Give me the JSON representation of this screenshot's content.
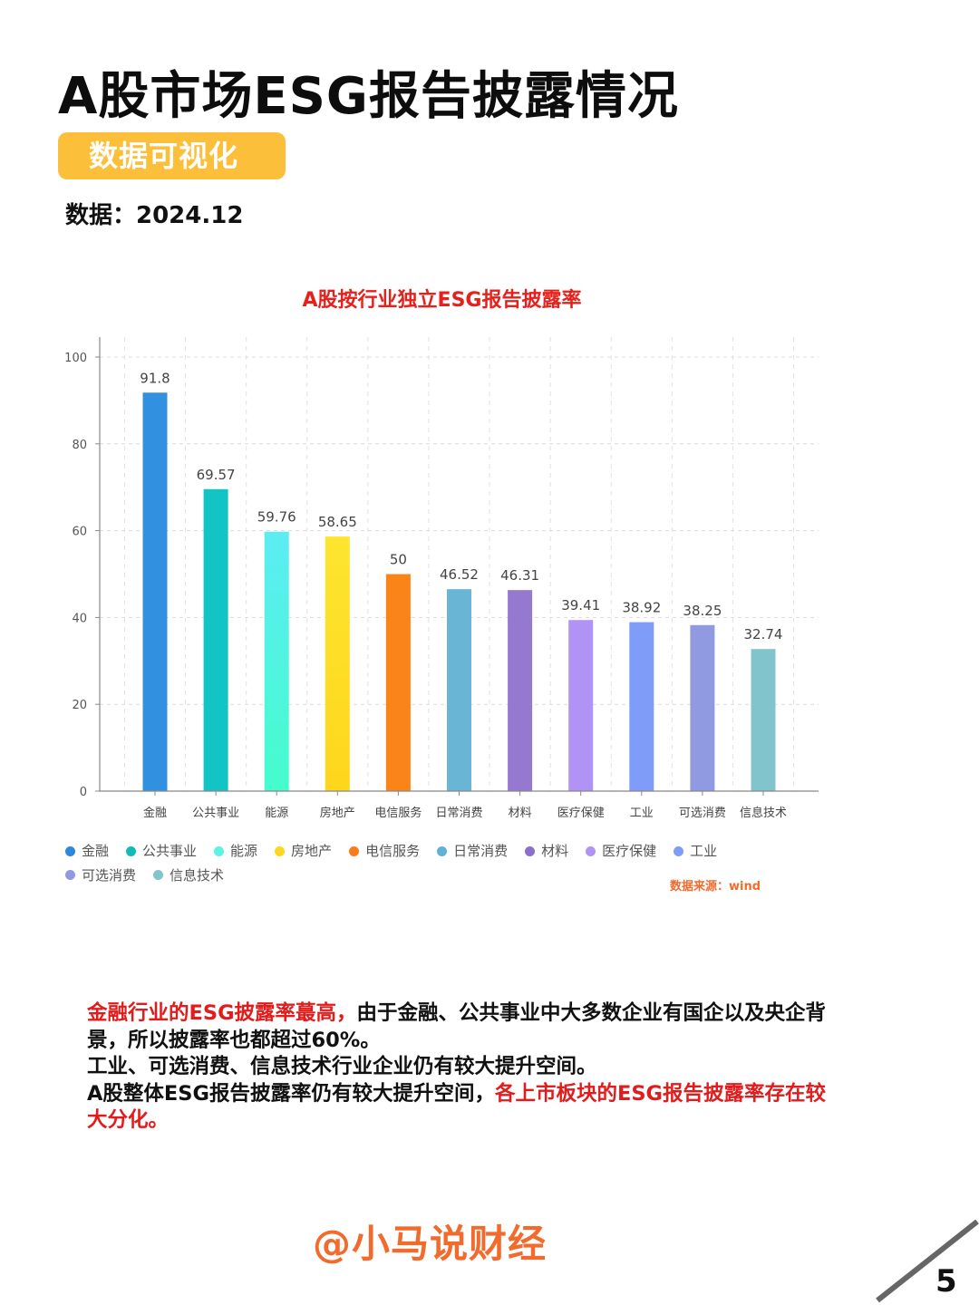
{
  "header": {
    "title": "A股市场ESG报告披露情况",
    "tag": "数据可视化",
    "date_label": "数据：2024.12"
  },
  "chart_data": {
    "type": "bar",
    "title": "A股按行业独立ESG报告披露率",
    "xlabel": "",
    "ylabel": "",
    "ylim": [
      0,
      100
    ],
    "yticks": [
      0,
      20,
      40,
      60,
      80,
      100
    ],
    "grid": true,
    "legend_position": "bottom",
    "categories": [
      "金融",
      "公共事业",
      "能源",
      "房地产",
      "电信服务",
      "日常消费",
      "材料",
      "医疗保健",
      "工业",
      "可选消费",
      "信息技术"
    ],
    "values": [
      91.8,
      69.57,
      59.76,
      58.65,
      50,
      46.52,
      46.31,
      39.41,
      38.92,
      38.25,
      32.74
    ],
    "value_labels": [
      "91.8",
      "69.57",
      "59.76",
      "58.65",
      "50",
      "46.52",
      "46.31",
      "39.41",
      "38.92",
      "38.25",
      "32.74"
    ],
    "colors": [
      "#3190df",
      "#12c5c4",
      "#5cecf4",
      "#fde52f",
      "#fb8419",
      "#68b5d6",
      "#9578d0",
      "#b192f5",
      "#7f9cf9",
      "#8f9ae0",
      "#82c4cc"
    ],
    "colors_bottom": [
      "#3190df",
      "#12c5c4",
      "#45fccc",
      "#fed61c",
      "#fb8419",
      "#68b5d6",
      "#9578d0",
      "#b192f5",
      "#7f9cf9",
      "#8f9ae0",
      "#82c4cc"
    ],
    "source": "数据来源：wind"
  },
  "legend": {
    "items": [
      {
        "label": "金融",
        "color": "#2e86de"
      },
      {
        "label": "公共事业",
        "color": "#12bcb4"
      },
      {
        "label": "能源",
        "color": "#5cf2e4"
      },
      {
        "label": "房地产",
        "color": "#fed61c"
      },
      {
        "label": "电信服务",
        "color": "#fb7a19"
      },
      {
        "label": "日常消费",
        "color": "#5fb2d4"
      },
      {
        "label": "材料",
        "color": "#8c6fcc"
      },
      {
        "label": "医疗保健",
        "color": "#b192f5"
      },
      {
        "label": "工业",
        "color": "#7f9cf9"
      },
      {
        "label": "可选消费",
        "color": "#8f9ae0"
      },
      {
        "label": "信息技术",
        "color": "#82c4cc"
      }
    ]
  },
  "summary": {
    "line1_red": "金融行业的ESG披露率蕞高，",
    "line1_black": "由于金融、公共事业中大多数企业有国企以及央企背景，所以披露率也都超过60%。",
    "line2": "工业、可选消费、信息技术行业企业仍有较大提升空间。",
    "line3_black": "A股整体ESG报告披露率仍有较大提升空间，",
    "line3_red": "各上市板块的ESG报告披露率存在较大分化。"
  },
  "footer": {
    "watermark": "@小马说财经",
    "page_number": "5"
  }
}
